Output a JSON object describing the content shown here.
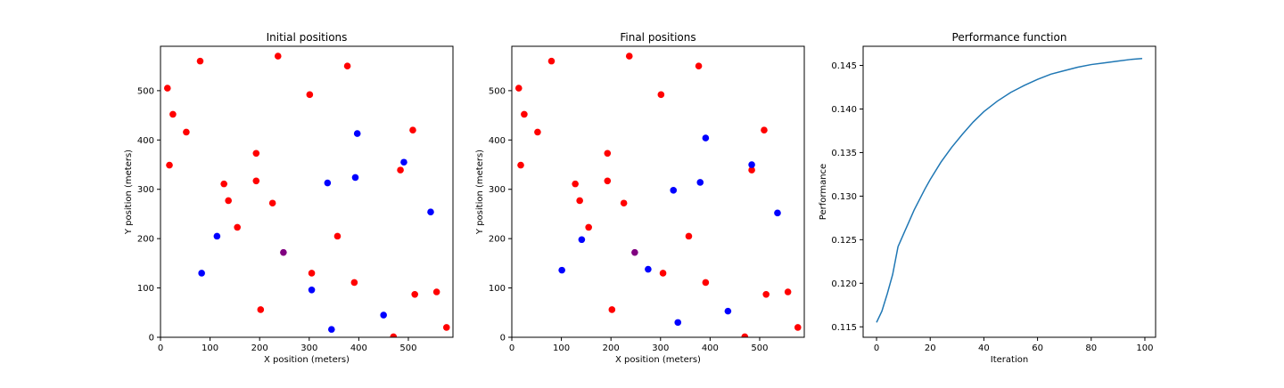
{
  "chart_data": [
    {
      "type": "scatter",
      "title": "Initial positions",
      "xlabel": "X position (meters)",
      "ylabel": "Y position (meters)",
      "xlim": [
        0,
        590
      ],
      "ylim": [
        0,
        590
      ],
      "xticks": [
        0,
        100,
        200,
        300,
        400,
        500
      ],
      "yticks": [
        0,
        100,
        200,
        300,
        400,
        500
      ],
      "series": [
        {
          "color": "#ff0000",
          "points": [
            [
              14,
              505
            ],
            [
              80,
              560
            ],
            [
              237,
              570
            ],
            [
              377,
              550
            ],
            [
              25,
              452
            ],
            [
              52,
              416
            ],
            [
              301,
              492
            ],
            [
              509,
              420
            ],
            [
              18,
              349
            ],
            [
              193,
              373
            ],
            [
              128,
              311
            ],
            [
              193,
              317
            ],
            [
              484,
              339
            ],
            [
              137,
              277
            ],
            [
              226,
              272
            ],
            [
              155,
              223
            ],
            [
              357,
              205
            ],
            [
              305,
              130
            ],
            [
              391,
              111
            ],
            [
              513,
              87
            ],
            [
              557,
              92
            ],
            [
              202,
              56
            ],
            [
              470,
              1
            ],
            [
              577,
              20
            ]
          ]
        },
        {
          "color": "#0000ff",
          "points": [
            [
              397,
              413
            ],
            [
              491,
              355
            ],
            [
              393,
              324
            ],
            [
              337,
              313
            ],
            [
              545,
              254
            ],
            [
              114,
              205
            ],
            [
              83,
              130
            ],
            [
              305,
              96
            ],
            [
              450,
              45
            ],
            [
              345,
              16
            ]
          ]
        },
        {
          "color": "#800080",
          "points": [
            [
              248,
              172
            ]
          ]
        }
      ]
    },
    {
      "type": "scatter",
      "title": "Final positions",
      "xlabel": "X position (meters)",
      "ylabel": "Y position (meters)",
      "xlim": [
        0,
        590
      ],
      "ylim": [
        0,
        590
      ],
      "xticks": [
        0,
        100,
        200,
        300,
        400,
        500
      ],
      "yticks": [
        0,
        100,
        200,
        300,
        400,
        500
      ],
      "series": [
        {
          "color": "#ff0000",
          "points": [
            [
              14,
              505
            ],
            [
              80,
              560
            ],
            [
              237,
              570
            ],
            [
              377,
              550
            ],
            [
              25,
              452
            ],
            [
              52,
              416
            ],
            [
              301,
              492
            ],
            [
              509,
              420
            ],
            [
              18,
              349
            ],
            [
              193,
              373
            ],
            [
              128,
              311
            ],
            [
              193,
              317
            ],
            [
              484,
              339
            ],
            [
              137,
              277
            ],
            [
              226,
              272
            ],
            [
              155,
              223
            ],
            [
              357,
              205
            ],
            [
              305,
              130
            ],
            [
              391,
              111
            ],
            [
              513,
              87
            ],
            [
              557,
              92
            ],
            [
              202,
              56
            ],
            [
              470,
              1
            ],
            [
              577,
              20
            ]
          ]
        },
        {
          "color": "#0000ff",
          "points": [
            [
              391,
              404
            ],
            [
              484,
              350
            ],
            [
              380,
              314
            ],
            [
              326,
              298
            ],
            [
              536,
              252
            ],
            [
              141,
              198
            ],
            [
              101,
              136
            ],
            [
              275,
              138
            ],
            [
              436,
              53
            ],
            [
              335,
              30
            ]
          ]
        },
        {
          "color": "#800080",
          "points": [
            [
              248,
              172
            ]
          ]
        }
      ]
    },
    {
      "type": "line",
      "title": "Performance function",
      "xlabel": "Iteration",
      "ylabel": "Performance",
      "xlim": [
        -5,
        104
      ],
      "ylim": [
        0.1138,
        0.1472
      ],
      "xticks": [
        0,
        20,
        40,
        60,
        80,
        100
      ],
      "yticks": [
        0.115,
        0.12,
        0.125,
        0.13,
        0.135,
        0.14,
        0.145
      ],
      "ytick_labels": [
        "0.115",
        "0.120",
        "0.125",
        "0.130",
        "0.135",
        "0.140",
        "0.145"
      ],
      "series": [
        {
          "color": "#1f77b4",
          "x": [
            0,
            2,
            4,
            6,
            8,
            10,
            12,
            14,
            16,
            18,
            20,
            24,
            28,
            32,
            36,
            40,
            45,
            50,
            55,
            60,
            65,
            70,
            75,
            80,
            85,
            90,
            95,
            99
          ],
          "values": [
            0.1155,
            0.1168,
            0.1188,
            0.121,
            0.1242,
            0.1256,
            0.127,
            0.1284,
            0.1296,
            0.1308,
            0.1319,
            0.1339,
            0.1356,
            0.1371,
            0.1385,
            0.1397,
            0.1409,
            0.1419,
            0.1427,
            0.1434,
            0.144,
            0.1444,
            0.1448,
            0.1451,
            0.1453,
            0.1455,
            0.1457,
            0.1458
          ]
        }
      ]
    }
  ]
}
